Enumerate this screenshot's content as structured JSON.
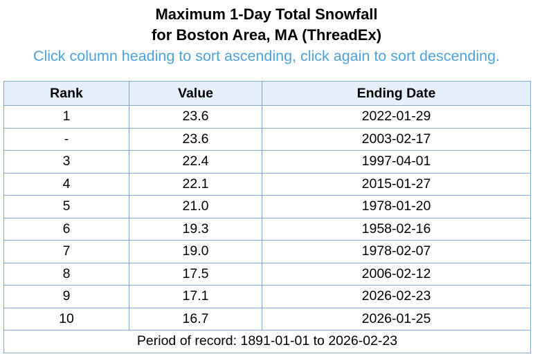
{
  "header": {
    "title": [
      "Maximum 1-Day Total Snowfall",
      "for Boston Area, MA (ThreadEx)"
    ],
    "subtitle": "Click column heading to sort ascending, click again to sort descending."
  },
  "table": {
    "columns": [
      "Rank",
      "Value",
      "Ending Date"
    ],
    "rows": [
      [
        "1",
        "23.6",
        "2022-01-29"
      ],
      [
        "-",
        "23.6",
        "2003-02-17"
      ],
      [
        "3",
        "22.4",
        "1997-04-01"
      ],
      [
        "4",
        "22.1",
        "2015-01-27"
      ],
      [
        "5",
        "21.0",
        "1978-01-20"
      ],
      [
        "6",
        "19.3",
        "1958-02-16"
      ],
      [
        "7",
        "19.0",
        "1978-02-07"
      ],
      [
        "8",
        "17.5",
        "2006-02-12"
      ],
      [
        "9",
        "17.1",
        "2026-02-23"
      ],
      [
        "10",
        "16.7",
        "2026-01-25"
      ]
    ],
    "footer": "Period of record: 1891-01-01 to 2026-02-23"
  }
}
